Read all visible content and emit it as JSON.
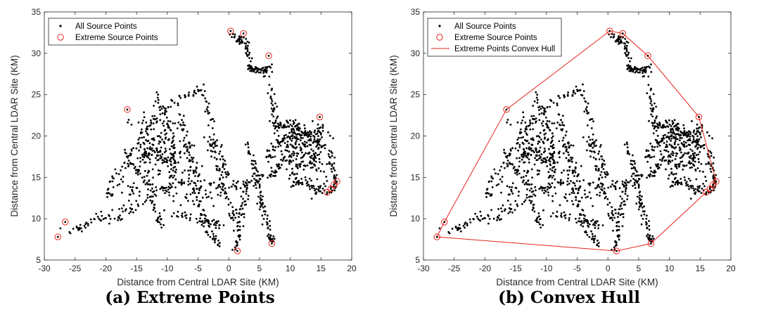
{
  "captions": [
    "(a) Extreme Points",
    "(b) Convex Hull"
  ],
  "colors": {
    "points": "#000000",
    "extreme": "#e8251e",
    "hull": "#e8251e",
    "axes": "#262626"
  },
  "chart_data": [
    {
      "type": "scatter",
      "xlabel": "Distance from Central LDAR Site (KM)",
      "ylabel": "Distance from Central LDAR Site (KM)",
      "xlim": [
        -30,
        20
      ],
      "ylim": [
        5,
        35
      ],
      "xticks": [
        -30,
        -25,
        -20,
        -15,
        -10,
        -5,
        0,
        5,
        10,
        15,
        20
      ],
      "yticks": [
        5,
        10,
        15,
        20,
        25,
        30,
        35
      ],
      "legend_position": "top-left",
      "series": [
        {
          "name": "All Source Points",
          "marker": "dot"
        },
        {
          "name": "Extreme Source Points",
          "marker": "circle",
          "points": [
            [
              -27.8,
              7.8
            ],
            [
              -26.6,
              9.6
            ],
            [
              -16.5,
              23.2
            ],
            [
              0.3,
              32.7
            ],
            [
              2.4,
              32.4
            ],
            [
              6.5,
              29.7
            ],
            [
              14.8,
              22.3
            ],
            [
              17.6,
              14.5
            ],
            [
              17.1,
              14.1
            ],
            [
              16.6,
              13.6
            ],
            [
              16.0,
              13.2
            ],
            [
              7.0,
              7.0
            ],
            [
              1.4,
              6.1
            ]
          ]
        }
      ]
    },
    {
      "type": "scatter",
      "xlabel": "Distance from Central LDAR Site (KM)",
      "ylabel": "Distance from Central LDAR Site (KM)",
      "xlim": [
        -30,
        20
      ],
      "ylim": [
        5,
        35
      ],
      "xticks": [
        -30,
        -25,
        -20,
        -15,
        -10,
        -5,
        0,
        5,
        10,
        15,
        20
      ],
      "yticks": [
        5,
        10,
        15,
        20,
        25,
        30,
        35
      ],
      "legend_position": "top-left",
      "series": [
        {
          "name": "All Source Points",
          "marker": "dot"
        },
        {
          "name": "Extreme Source Points",
          "marker": "circle",
          "points": [
            [
              -27.8,
              7.8
            ],
            [
              -26.6,
              9.6
            ],
            [
              -16.5,
              23.2
            ],
            [
              0.3,
              32.7
            ],
            [
              2.4,
              32.4
            ],
            [
              6.5,
              29.7
            ],
            [
              14.8,
              22.3
            ],
            [
              17.6,
              14.5
            ],
            [
              17.1,
              14.1
            ],
            [
              16.6,
              13.6
            ],
            [
              16.0,
              13.2
            ],
            [
              7.0,
              7.0
            ],
            [
              1.4,
              6.1
            ]
          ]
        },
        {
          "name": "Extreme Points Convex Hull",
          "marker": "line",
          "points": [
            [
              -27.8,
              7.8
            ],
            [
              -26.6,
              9.6
            ],
            [
              -16.5,
              23.2
            ],
            [
              0.3,
              32.7
            ],
            [
              2.4,
              32.4
            ],
            [
              6.5,
              29.7
            ],
            [
              14.8,
              22.3
            ],
            [
              17.6,
              14.5
            ],
            [
              17.1,
              14.1
            ],
            [
              16.6,
              13.6
            ],
            [
              16.0,
              13.2
            ],
            [
              7.0,
              7.0
            ],
            [
              1.4,
              6.1
            ],
            [
              -27.8,
              7.8
            ]
          ]
        }
      ]
    }
  ]
}
